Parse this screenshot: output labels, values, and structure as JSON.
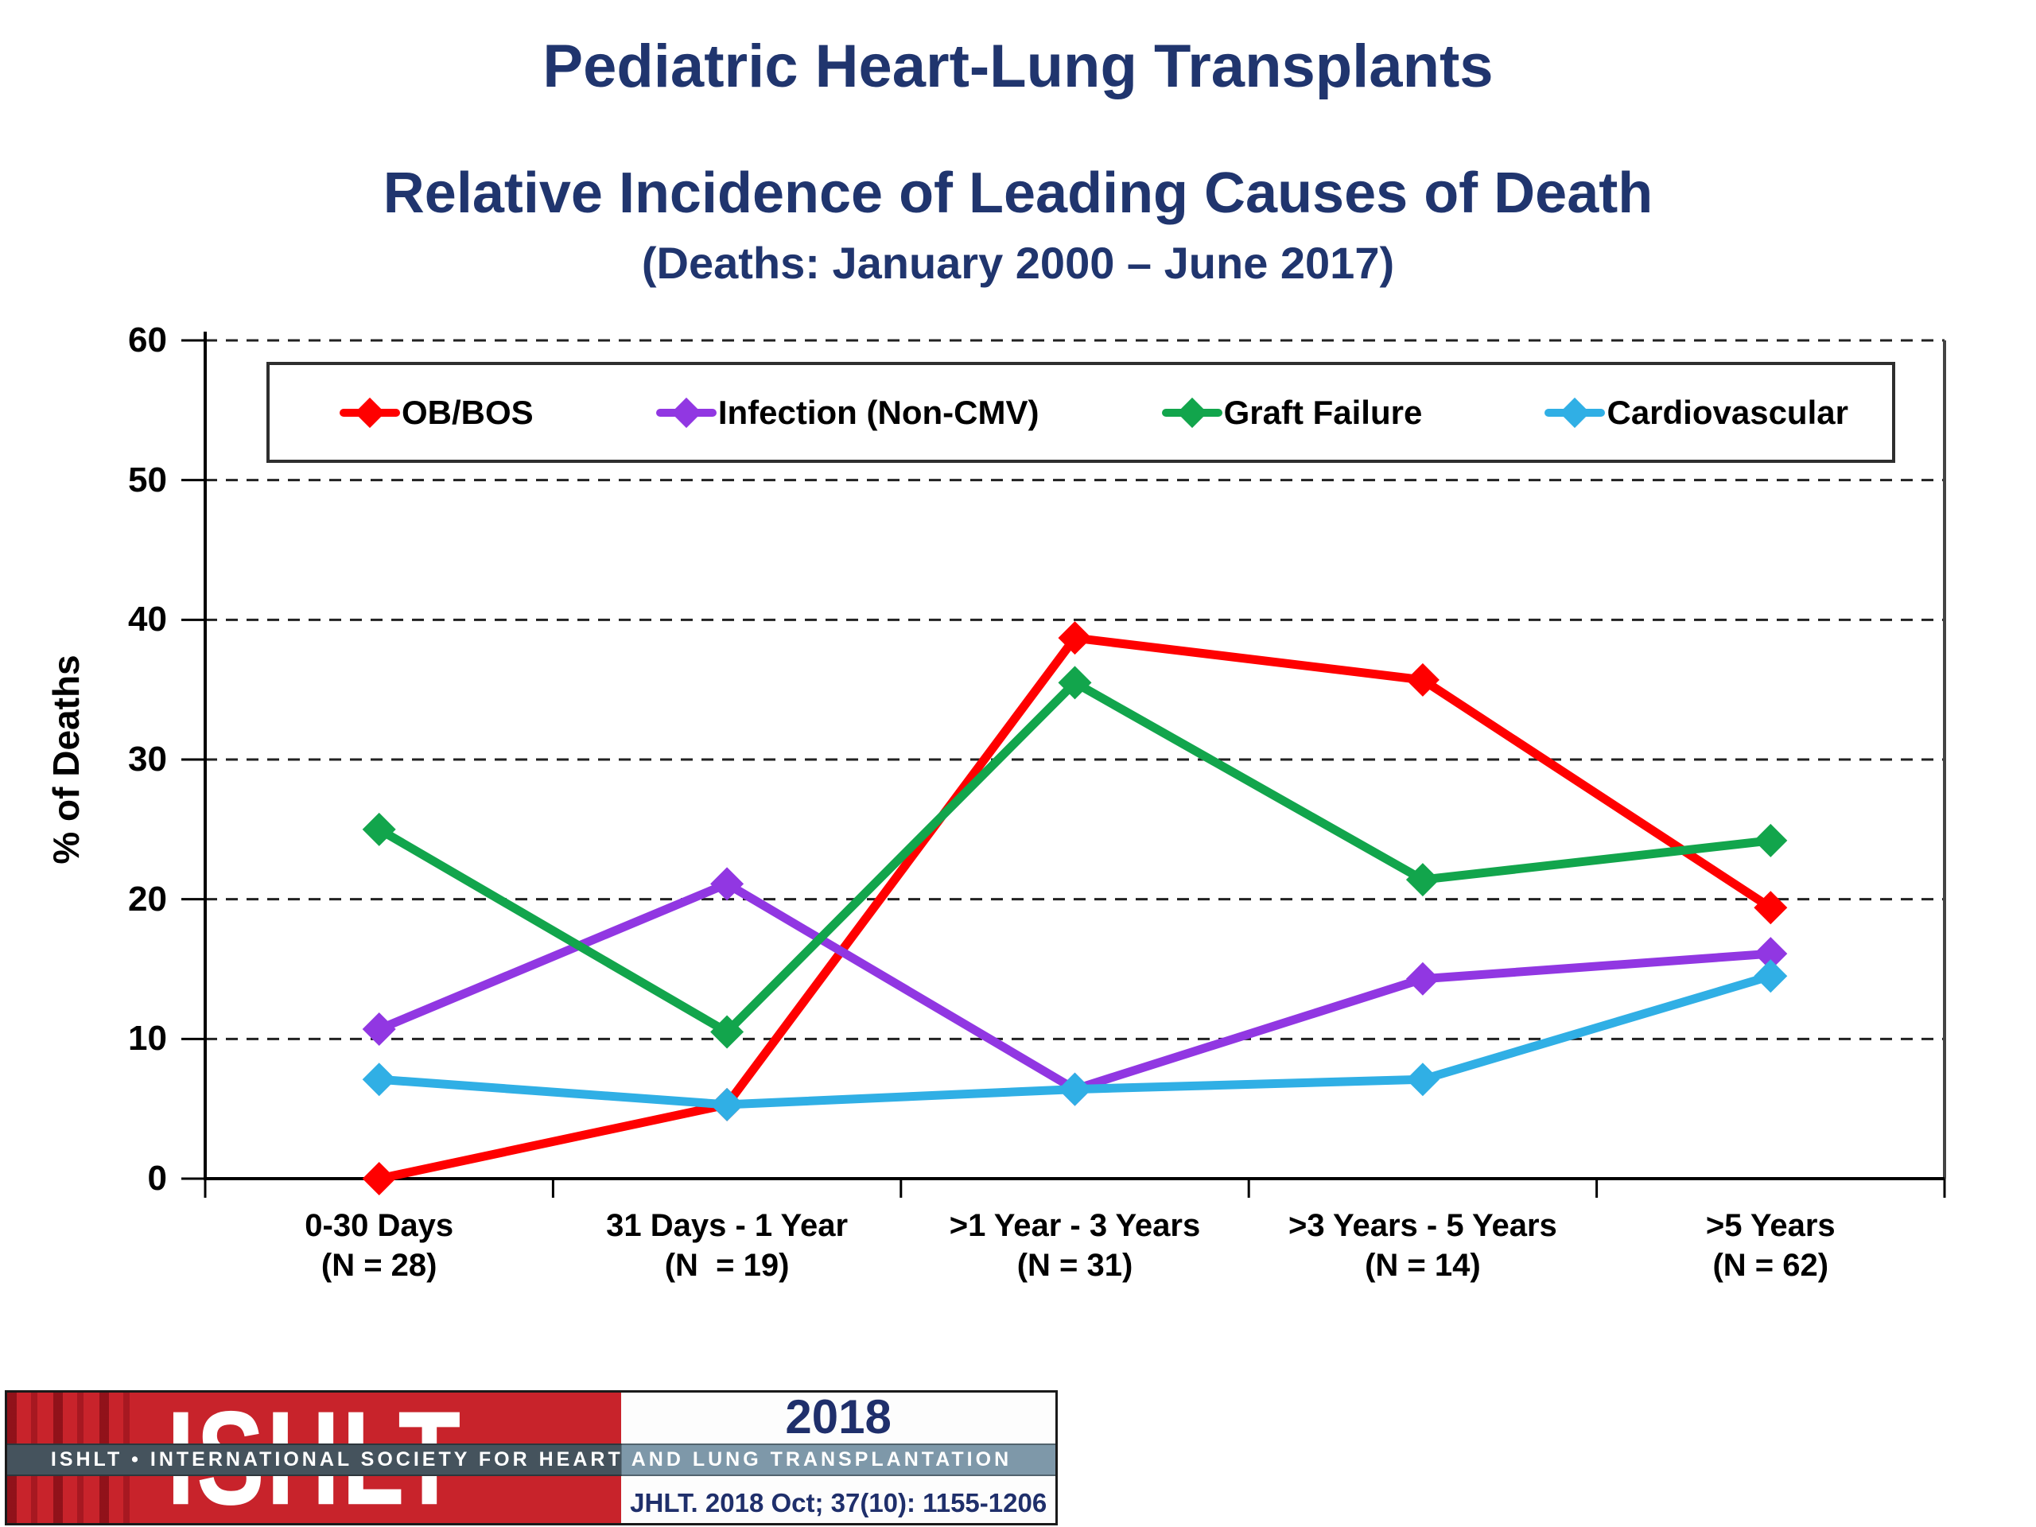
{
  "title": {
    "line1": "Pediatric Heart-Lung Transplants",
    "line2": "Relative Incidence of Leading Causes of Death",
    "line3": "(Deaths: January 2000 – June 2017)"
  },
  "chart_data": {
    "type": "line",
    "title": "Pediatric Heart-Lung Transplants — Relative Incidence of Leading Causes of Death (Deaths: January 2000 – June 2017)",
    "categories": [
      "0-30 Days",
      "31 Days - 1 Year",
      ">1 Year - 3 Years",
      ">3 Years - 5 Years",
      ">5 Years"
    ],
    "category_n": [
      "(N = 28)",
      "(N  = 19)",
      "(N = 31)",
      "(N = 14)",
      "(N = 62)"
    ],
    "series": [
      {
        "name": "OB/BOS",
        "color": "#FF0000",
        "values": [
          0.0,
          5.3,
          38.7,
          35.7,
          19.4
        ]
      },
      {
        "name": "Infection (Non-CMV)",
        "color": "#9137E2",
        "values": [
          10.7,
          21.1,
          6.4,
          14.3,
          16.1
        ]
      },
      {
        "name": "Graft Failure",
        "color": "#12A54C",
        "values": [
          25.0,
          10.5,
          35.5,
          21.4,
          24.2
        ]
      },
      {
        "name": "Cardiovascular",
        "color": "#30AFE5",
        "values": [
          7.1,
          5.3,
          6.4,
          7.1,
          14.5
        ]
      }
    ],
    "xlabel": "",
    "ylabel": "% of Deaths",
    "ylim": [
      0,
      60
    ],
    "yticks": [
      0,
      10,
      20,
      30,
      40,
      50,
      60
    ],
    "grid": "horizontal dashed",
    "legend_position": "top"
  },
  "footer": {
    "logo_text": "ISHLT",
    "banner": "ISHLT • INTERNATIONAL SOCIETY FOR HEART AND LUNG TRANSPLANTATION",
    "year": "2018",
    "citation": "JHLT. 2018 Oct; 37(10): 1155-1206"
  }
}
